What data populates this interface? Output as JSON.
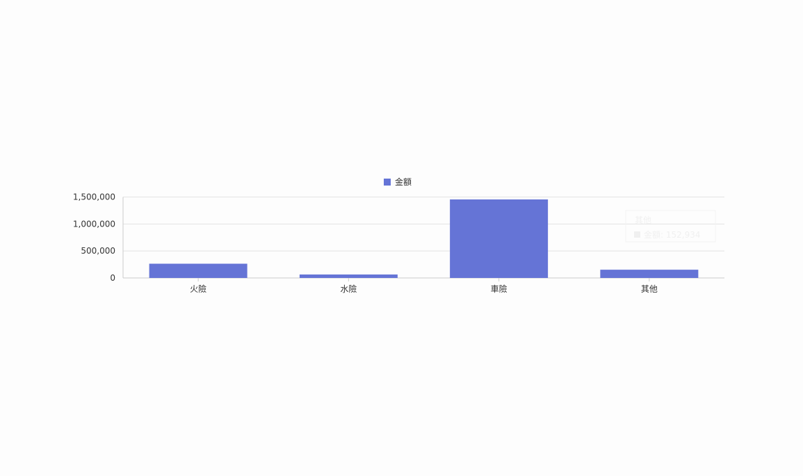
{
  "chart_data": {
    "type": "bar",
    "categories": [
      "火險",
      "水險",
      "車險",
      "其他"
    ],
    "series": [
      {
        "name": "金額",
        "values": [
          264000,
          64000,
          1455000,
          152934
        ],
        "color": "#6574d6"
      }
    ],
    "ylim": [
      0,
      1500000
    ],
    "yticks": [
      "0",
      "500,000",
      "1,000,000",
      "1,500,000"
    ],
    "ytick_values": [
      0,
      500000,
      1000000,
      1500000
    ],
    "grid": true,
    "legend": "top-center",
    "tooltip": {
      "title": "其他",
      "label": "金額: 152,934"
    }
  }
}
